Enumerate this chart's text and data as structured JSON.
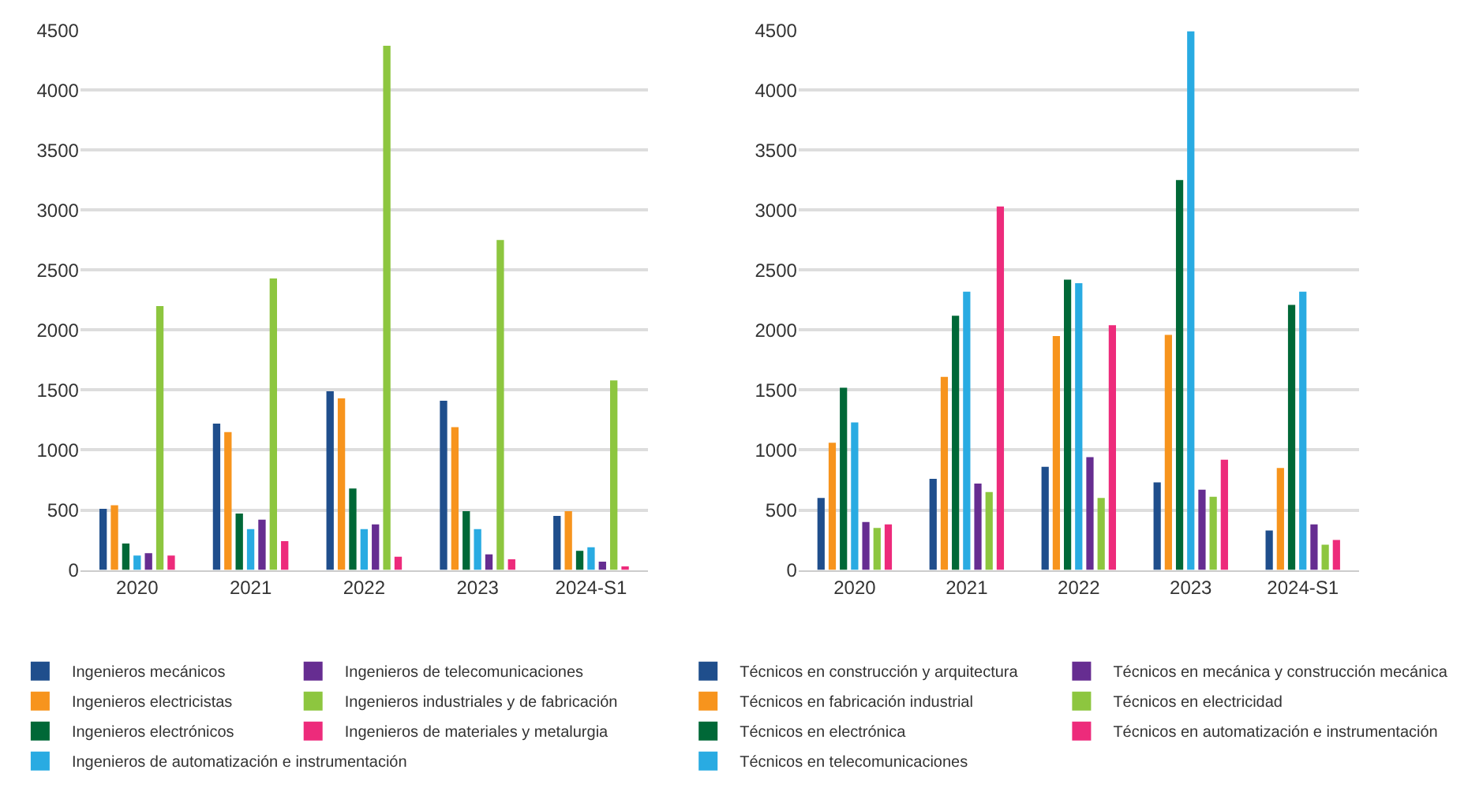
{
  "chart_data": [
    {
      "type": "bar",
      "categories": [
        "2020",
        "2021",
        "2022",
        "2023",
        "2024-S1"
      ],
      "ylim": [
        0,
        4500
      ],
      "yticks": [
        0,
        500,
        1000,
        1500,
        2000,
        2500,
        3000,
        3500,
        4000,
        4500
      ],
      "grid": "y",
      "legend": "bottom",
      "series": [
        {
          "name": "Ingenieros mecánicos",
          "color": "#1f4e8c",
          "values": [
            510,
            1220,
            1490,
            1410,
            450
          ]
        },
        {
          "name": "Ingenieros electricistas",
          "color": "#f7941d",
          "values": [
            540,
            1150,
            1430,
            1190,
            490
          ]
        },
        {
          "name": "Ingenieros electrónicos",
          "color": "#006837",
          "values": [
            220,
            470,
            680,
            490,
            160
          ]
        },
        {
          "name": "Ingenieros de automatización e instrumentación",
          "color": "#29abe2",
          "values": [
            120,
            340,
            340,
            340,
            190
          ]
        },
        {
          "name": "Ingenieros de telecomunicaciones",
          "color": "#662d91",
          "values": [
            140,
            420,
            380,
            130,
            70
          ]
        },
        {
          "name": "Ingenieros industriales y de fabricación",
          "color": "#8dc63f",
          "values": [
            2200,
            2430,
            4370,
            2750,
            1580
          ]
        },
        {
          "name": "Ingenieros de materiales y metalurgia",
          "color": "#ed2b7b",
          "values": [
            120,
            240,
            110,
            90,
            30
          ]
        }
      ]
    },
    {
      "type": "bar",
      "categories": [
        "2020",
        "2021",
        "2022",
        "2023",
        "2024-S1"
      ],
      "ylim": [
        0,
        4500
      ],
      "yticks": [
        0,
        500,
        1000,
        1500,
        2000,
        2500,
        3000,
        3500,
        4000,
        4500
      ],
      "grid": "y",
      "legend": "bottom",
      "series": [
        {
          "name": "Técnicos en construcción y arquitectura",
          "color": "#1f4e8c",
          "values": [
            600,
            760,
            860,
            730,
            330
          ]
        },
        {
          "name": "Técnicos en fabricación industrial",
          "color": "#f7941d",
          "values": [
            1060,
            1610,
            1950,
            1960,
            850
          ]
        },
        {
          "name": "Técnicos en electrónica",
          "color": "#006837",
          "values": [
            1520,
            2120,
            2420,
            3250,
            2210
          ]
        },
        {
          "name": "Técnicos en telecomunicaciones",
          "color": "#29abe2",
          "values": [
            1230,
            2320,
            2390,
            4490,
            2320
          ]
        },
        {
          "name": "Técnicos en mecánica y construcción mecánica",
          "color": "#662d91",
          "values": [
            400,
            720,
            940,
            670,
            380
          ]
        },
        {
          "name": "Técnicos en electricidad",
          "color": "#8dc63f",
          "values": [
            350,
            650,
            600,
            610,
            210
          ]
        },
        {
          "name": "Técnicos en automatización e instrumentación",
          "color": "#ed2b7b",
          "values": [
            380,
            3030,
            2040,
            920,
            250
          ]
        }
      ]
    }
  ]
}
